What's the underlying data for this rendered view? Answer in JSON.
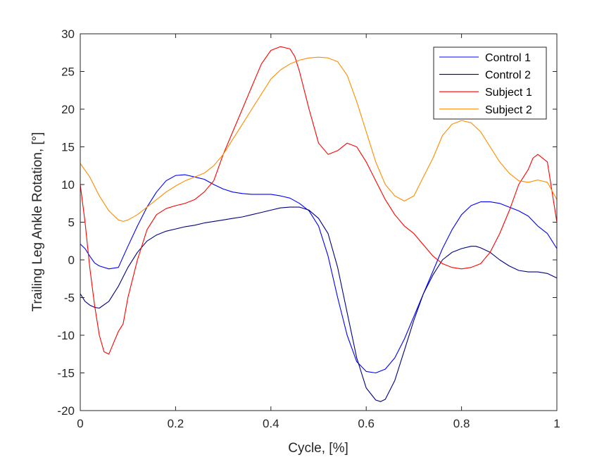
{
  "chart_data": {
    "type": "line",
    "title": "",
    "xlabel": "Cycle, [%]",
    "ylabel": "Trailing Leg Ankle Rotation, [°]",
    "xlim": [
      0,
      1
    ],
    "ylim": [
      -20,
      30
    ],
    "xticks": [
      0,
      0.2,
      0.4,
      0.6,
      0.8,
      1
    ],
    "xtick_labels": [
      "0",
      "0.2",
      "0.4",
      "0.6",
      "0.8",
      "1"
    ],
    "yticks": [
      -20,
      -15,
      -10,
      -5,
      0,
      5,
      10,
      15,
      20,
      25,
      30
    ],
    "ytick_labels": [
      "-20",
      "-15",
      "-10",
      "-5",
      "0",
      "5",
      "10",
      "15",
      "20",
      "25",
      "30"
    ],
    "grid": false,
    "legend_position": "top-right",
    "series": [
      {
        "name": "Control 1",
        "color": "#0000ff",
        "x": [
          0,
          0.01,
          0.02,
          0.03,
          0.04,
          0.06,
          0.08,
          0.09,
          0.1,
          0.12,
          0.14,
          0.16,
          0.18,
          0.2,
          0.22,
          0.24,
          0.26,
          0.28,
          0.3,
          0.32,
          0.34,
          0.36,
          0.38,
          0.4,
          0.42,
          0.44,
          0.46,
          0.48,
          0.5,
          0.52,
          0.54,
          0.56,
          0.58,
          0.6,
          0.62,
          0.64,
          0.66,
          0.68,
          0.7,
          0.72,
          0.74,
          0.76,
          0.78,
          0.8,
          0.82,
          0.84,
          0.86,
          0.88,
          0.9,
          0.92,
          0.94,
          0.96,
          0.98,
          1.0
        ],
        "y": [
          2.1,
          1.5,
          0.5,
          -0.4,
          -0.8,
          -1.2,
          -1.0,
          0.4,
          1.8,
          4.5,
          7.0,
          9.0,
          10.5,
          11.2,
          11.3,
          11.0,
          10.7,
          10.0,
          9.4,
          9.0,
          8.8,
          8.7,
          8.7,
          8.7,
          8.5,
          8.2,
          7.5,
          6.5,
          4.5,
          0.5,
          -5.0,
          -10.0,
          -13.5,
          -14.8,
          -15.0,
          -14.5,
          -13.0,
          -10.5,
          -7.5,
          -4.5,
          -1.5,
          1.5,
          4.0,
          6.0,
          7.2,
          7.7,
          7.7,
          7.5,
          7.0,
          6.5,
          5.8,
          4.5,
          3.5,
          1.5
        ]
      },
      {
        "name": "Control 2",
        "color": "#000080",
        "x": [
          0,
          0.01,
          0.02,
          0.03,
          0.04,
          0.06,
          0.08,
          0.1,
          0.12,
          0.14,
          0.16,
          0.18,
          0.2,
          0.22,
          0.24,
          0.26,
          0.28,
          0.3,
          0.32,
          0.34,
          0.36,
          0.38,
          0.4,
          0.42,
          0.44,
          0.46,
          0.48,
          0.5,
          0.52,
          0.54,
          0.56,
          0.58,
          0.6,
          0.62,
          0.63,
          0.64,
          0.66,
          0.68,
          0.7,
          0.72,
          0.74,
          0.76,
          0.78,
          0.8,
          0.82,
          0.83,
          0.84,
          0.86,
          0.88,
          0.9,
          0.92,
          0.94,
          0.96,
          0.98,
          1.0
        ],
        "y": [
          -4.5,
          -5.5,
          -6.0,
          -6.3,
          -6.4,
          -5.5,
          -3.5,
          -1.0,
          1.0,
          2.5,
          3.3,
          3.8,
          4.1,
          4.4,
          4.6,
          4.9,
          5.1,
          5.3,
          5.5,
          5.7,
          6.0,
          6.3,
          6.6,
          6.9,
          7.0,
          7.0,
          6.6,
          5.5,
          3.5,
          -1.0,
          -7.0,
          -13.0,
          -17.0,
          -18.6,
          -18.8,
          -18.5,
          -16.0,
          -12.0,
          -8.0,
          -4.5,
          -2.0,
          0.0,
          1.0,
          1.5,
          1.8,
          1.8,
          1.6,
          1.0,
          0.0,
          -0.8,
          -1.4,
          -1.6,
          -1.6,
          -1.8,
          -2.4
        ]
      },
      {
        "name": "Subject 1",
        "color": "#ff0000",
        "x": [
          0,
          0.01,
          0.02,
          0.03,
          0.04,
          0.05,
          0.06,
          0.07,
          0.08,
          0.09,
          0.1,
          0.12,
          0.14,
          0.16,
          0.18,
          0.2,
          0.22,
          0.24,
          0.26,
          0.28,
          0.3,
          0.32,
          0.34,
          0.36,
          0.38,
          0.4,
          0.42,
          0.44,
          0.45,
          0.46,
          0.48,
          0.5,
          0.52,
          0.54,
          0.56,
          0.58,
          0.6,
          0.62,
          0.64,
          0.66,
          0.68,
          0.7,
          0.72,
          0.74,
          0.76,
          0.78,
          0.8,
          0.82,
          0.84,
          0.86,
          0.88,
          0.9,
          0.92,
          0.94,
          0.95,
          0.96,
          0.98,
          1.0
        ],
        "y": [
          10.0,
          5.0,
          -1.0,
          -6.0,
          -10.0,
          -12.2,
          -12.5,
          -11.0,
          -9.5,
          -8.5,
          -5.0,
          0.0,
          4.0,
          6.0,
          6.8,
          7.2,
          7.5,
          8.0,
          9.0,
          10.5,
          14.0,
          17.0,
          20.0,
          23.0,
          26.0,
          27.8,
          28.3,
          28.0,
          27.0,
          25.0,
          20.0,
          15.5,
          14.0,
          14.5,
          15.5,
          15.0,
          13.0,
          10.5,
          8.0,
          6.0,
          4.5,
          3.5,
          2.0,
          0.5,
          -0.5,
          -1.0,
          -1.2,
          -1.0,
          -0.5,
          1.0,
          3.5,
          6.5,
          10.0,
          12.0,
          13.5,
          14.0,
          13.0,
          5.0
        ]
      },
      {
        "name": "Subject 2",
        "color": "#ff8c00",
        "x": [
          0,
          0.02,
          0.04,
          0.06,
          0.08,
          0.09,
          0.1,
          0.12,
          0.14,
          0.16,
          0.18,
          0.2,
          0.22,
          0.24,
          0.26,
          0.28,
          0.3,
          0.32,
          0.34,
          0.36,
          0.38,
          0.4,
          0.42,
          0.44,
          0.46,
          0.48,
          0.5,
          0.52,
          0.54,
          0.56,
          0.58,
          0.6,
          0.62,
          0.64,
          0.66,
          0.68,
          0.7,
          0.72,
          0.74,
          0.76,
          0.78,
          0.8,
          0.82,
          0.84,
          0.86,
          0.88,
          0.9,
          0.92,
          0.94,
          0.96,
          0.98,
          1.0
        ],
        "y": [
          12.8,
          11.0,
          8.5,
          6.5,
          5.3,
          5.1,
          5.3,
          6.0,
          7.0,
          8.0,
          9.0,
          9.8,
          10.5,
          11.0,
          11.5,
          12.5,
          14.0,
          16.0,
          18.0,
          20.0,
          22.0,
          24.0,
          25.2,
          26.0,
          26.5,
          26.8,
          26.9,
          26.8,
          26.3,
          24.5,
          21.0,
          17.0,
          13.0,
          10.0,
          8.5,
          7.8,
          8.5,
          11.0,
          13.5,
          16.5,
          18.0,
          18.5,
          18.2,
          17.0,
          15.0,
          13.0,
          11.5,
          10.5,
          10.3,
          10.6,
          10.3,
          8.0
        ]
      }
    ]
  }
}
